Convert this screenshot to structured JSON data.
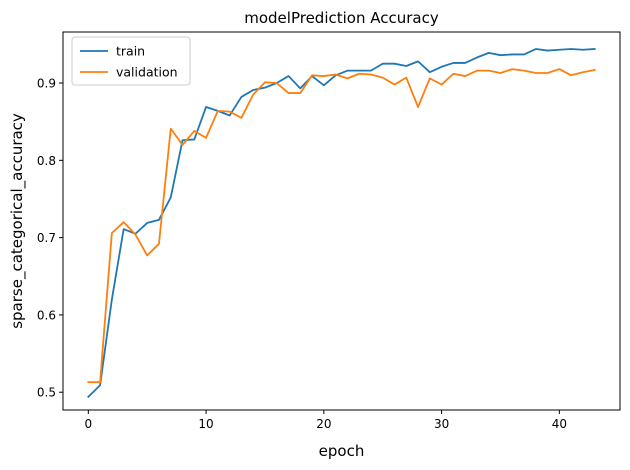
{
  "chart_data": {
    "type": "line",
    "title": "modelPrediction Accuracy",
    "xlabel": "epoch",
    "ylabel": "sparse_categorical_accuracy",
    "xlim": [
      -2.15,
      45.15
    ],
    "ylim": [
      0.477,
      0.966
    ],
    "xticks": [
      0,
      10,
      20,
      30,
      40
    ],
    "yticks": [
      0.5,
      0.6,
      0.7,
      0.8,
      0.9
    ],
    "grid": false,
    "legend_position": "top-left",
    "x": [
      0,
      1,
      2,
      3,
      4,
      5,
      6,
      7,
      8,
      9,
      10,
      11,
      12,
      13,
      14,
      15,
      16,
      17,
      18,
      19,
      20,
      21,
      22,
      23,
      24,
      25,
      26,
      27,
      28,
      29,
      30,
      31,
      32,
      33,
      34,
      35,
      36,
      37,
      38,
      39,
      40,
      41,
      42,
      43
    ],
    "series": [
      {
        "name": "train",
        "color": "#1f77b4",
        "values": [
          0.494,
          0.509,
          0.62,
          0.711,
          0.705,
          0.719,
          0.723,
          0.752,
          0.826,
          0.827,
          0.869,
          0.864,
          0.858,
          0.882,
          0.891,
          0.894,
          0.9,
          0.909,
          0.893,
          0.909,
          0.897,
          0.91,
          0.916,
          0.916,
          0.916,
          0.925,
          0.925,
          0.922,
          0.928,
          0.914,
          0.921,
          0.926,
          0.926,
          0.933,
          0.939,
          0.936,
          0.937,
          0.937,
          0.944,
          0.942,
          0.943,
          0.944,
          0.943,
          0.944
        ]
      },
      {
        "name": "validation",
        "color": "#ff7f0e",
        "values": [
          0.513,
          0.513,
          0.706,
          0.72,
          0.704,
          0.677,
          0.692,
          0.841,
          0.82,
          0.838,
          0.829,
          0.864,
          0.863,
          0.855,
          0.885,
          0.901,
          0.9,
          0.887,
          0.887,
          0.91,
          0.909,
          0.911,
          0.906,
          0.912,
          0.911,
          0.907,
          0.898,
          0.907,
          0.869,
          0.906,
          0.898,
          0.912,
          0.909,
          0.916,
          0.916,
          0.913,
          0.918,
          0.916,
          0.913,
          0.913,
          0.918,
          0.91,
          0.914,
          0.917
        ]
      }
    ]
  }
}
